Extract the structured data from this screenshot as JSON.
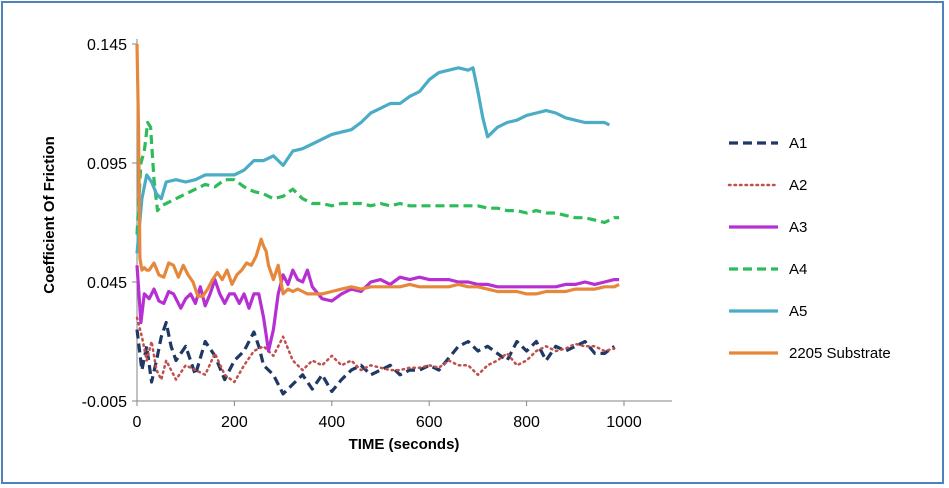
{
  "chart_data": {
    "type": "line",
    "title": "",
    "xlabel": "TIME (seconds)",
    "ylabel": "Coefficient Of Friction",
    "xlim": [
      0,
      1000
    ],
    "ylim": [
      -0.005,
      0.145
    ],
    "xticks": [
      "0",
      "200",
      "400",
      "600",
      "800",
      "1000"
    ],
    "yticks": [
      "-0.005",
      "0.045",
      "0.095",
      "0.145"
    ],
    "grid": false,
    "legend_position": "right",
    "series": [
      {
        "name": "A1",
        "color": "#1f3864",
        "dash": "dashed",
        "x": [
          0,
          10,
          20,
          30,
          40,
          50,
          60,
          70,
          80,
          100,
          120,
          140,
          160,
          180,
          200,
          220,
          240,
          250,
          260,
          280,
          300,
          320,
          340,
          360,
          380,
          400,
          420,
          440,
          460,
          480,
          500,
          520,
          540,
          560,
          580,
          600,
          620,
          640,
          660,
          680,
          700,
          720,
          740,
          760,
          780,
          800,
          820,
          840,
          860,
          880,
          900,
          920,
          940,
          960,
          980
        ],
        "values": [
          0.025,
          0.008,
          0.018,
          0.003,
          0.012,
          0.022,
          0.028,
          0.018,
          0.012,
          0.018,
          0.006,
          0.02,
          0.014,
          0.004,
          0.012,
          0.016,
          0.024,
          0.018,
          0.01,
          0.006,
          -0.002,
          0.002,
          0.006,
          0.0,
          0.006,
          -0.001,
          0.004,
          0.008,
          0.01,
          0.006,
          0.008,
          0.01,
          0.006,
          0.008,
          0.008,
          0.01,
          0.008,
          0.013,
          0.018,
          0.02,
          0.016,
          0.018,
          0.015,
          0.012,
          0.02,
          0.016,
          0.02,
          0.012,
          0.018,
          0.016,
          0.018,
          0.02,
          0.015,
          0.015,
          0.018
        ]
      },
      {
        "name": "A2",
        "color": "#c0504d",
        "dash": "dotted",
        "x": [
          0,
          10,
          20,
          30,
          40,
          50,
          60,
          80,
          100,
          120,
          140,
          160,
          180,
          200,
          220,
          240,
          260,
          280,
          300,
          320,
          340,
          360,
          380,
          400,
          420,
          440,
          460,
          480,
          500,
          520,
          540,
          560,
          580,
          600,
          620,
          640,
          660,
          680,
          700,
          720,
          740,
          760,
          780,
          800,
          820,
          840,
          860,
          880,
          900,
          920,
          940,
          960,
          980
        ],
        "values": [
          0.03,
          0.022,
          0.012,
          0.02,
          0.008,
          0.004,
          0.012,
          0.004,
          0.01,
          0.008,
          0.006,
          0.015,
          0.006,
          0.003,
          0.01,
          0.016,
          0.018,
          0.014,
          0.022,
          0.012,
          0.008,
          0.012,
          0.01,
          0.014,
          0.01,
          0.012,
          0.008,
          0.01,
          0.009,
          0.008,
          0.008,
          0.009,
          0.009,
          0.01,
          0.009,
          0.012,
          0.01,
          0.01,
          0.006,
          0.01,
          0.012,
          0.015,
          0.01,
          0.012,
          0.016,
          0.018,
          0.016,
          0.017,
          0.019,
          0.018,
          0.018,
          0.016,
          0.017
        ]
      },
      {
        "name": "A3",
        "color": "#b62fd3",
        "dash": "solid",
        "x": [
          0,
          8,
          15,
          25,
          35,
          45,
          55,
          65,
          75,
          90,
          100,
          110,
          120,
          130,
          140,
          150,
          160,
          170,
          180,
          190,
          200,
          210,
          220,
          230,
          240,
          250,
          260,
          270,
          280,
          290,
          300,
          310,
          320,
          330,
          340,
          350,
          360,
          380,
          400,
          420,
          440,
          460,
          480,
          500,
          520,
          540,
          560,
          580,
          600,
          620,
          640,
          660,
          680,
          700,
          720,
          740,
          760,
          780,
          800,
          820,
          840,
          860,
          880,
          900,
          920,
          940,
          960,
          980,
          990
        ],
        "values": [
          0.052,
          0.028,
          0.04,
          0.038,
          0.042,
          0.037,
          0.036,
          0.041,
          0.04,
          0.034,
          0.038,
          0.04,
          0.036,
          0.043,
          0.035,
          0.04,
          0.046,
          0.04,
          0.036,
          0.04,
          0.04,
          0.036,
          0.04,
          0.034,
          0.04,
          0.04,
          0.03,
          0.016,
          0.025,
          0.04,
          0.048,
          0.044,
          0.05,
          0.046,
          0.045,
          0.05,
          0.043,
          0.038,
          0.037,
          0.04,
          0.042,
          0.041,
          0.045,
          0.046,
          0.044,
          0.047,
          0.046,
          0.047,
          0.046,
          0.046,
          0.046,
          0.045,
          0.045,
          0.044,
          0.044,
          0.043,
          0.043,
          0.043,
          0.043,
          0.043,
          0.043,
          0.043,
          0.044,
          0.044,
          0.045,
          0.044,
          0.045,
          0.046,
          0.046
        ]
      },
      {
        "name": "A4",
        "color": "#2ebc5a",
        "dash": "dashed",
        "x": [
          0,
          8,
          15,
          22,
          28,
          35,
          42,
          50,
          60,
          70,
          80,
          100,
          120,
          140,
          160,
          180,
          200,
          220,
          240,
          260,
          280,
          300,
          320,
          340,
          360,
          380,
          400,
          420,
          440,
          460,
          480,
          500,
          520,
          540,
          560,
          580,
          600,
          620,
          640,
          660,
          680,
          700,
          720,
          740,
          760,
          780,
          800,
          820,
          840,
          860,
          880,
          900,
          920,
          940,
          960,
          980,
          990
        ],
        "values": [
          0.065,
          0.095,
          0.1,
          0.112,
          0.11,
          0.088,
          0.075,
          0.077,
          0.078,
          0.079,
          0.08,
          0.082,
          0.084,
          0.086,
          0.085,
          0.088,
          0.088,
          0.085,
          0.083,
          0.082,
          0.08,
          0.081,
          0.084,
          0.08,
          0.078,
          0.078,
          0.077,
          0.078,
          0.078,
          0.078,
          0.077,
          0.078,
          0.077,
          0.078,
          0.077,
          0.077,
          0.077,
          0.077,
          0.077,
          0.077,
          0.077,
          0.077,
          0.076,
          0.076,
          0.075,
          0.075,
          0.074,
          0.075,
          0.074,
          0.074,
          0.073,
          0.072,
          0.072,
          0.071,
          0.07,
          0.072,
          0.072
        ]
      },
      {
        "name": "A5",
        "color": "#4bacc6",
        "dash": "solid",
        "x": [
          0,
          10,
          20,
          30,
          40,
          50,
          60,
          80,
          100,
          120,
          140,
          160,
          180,
          200,
          220,
          240,
          260,
          280,
          300,
          320,
          340,
          360,
          380,
          400,
          420,
          440,
          460,
          480,
          500,
          520,
          540,
          560,
          580,
          600,
          620,
          640,
          660,
          680,
          690,
          700,
          710,
          720,
          740,
          760,
          780,
          800,
          820,
          840,
          860,
          880,
          900,
          920,
          940,
          960,
          970
        ],
        "values": [
          0.057,
          0.08,
          0.09,
          0.087,
          0.082,
          0.08,
          0.087,
          0.088,
          0.087,
          0.088,
          0.09,
          0.09,
          0.09,
          0.09,
          0.092,
          0.096,
          0.096,
          0.098,
          0.094,
          0.1,
          0.101,
          0.103,
          0.105,
          0.107,
          0.108,
          0.109,
          0.112,
          0.116,
          0.118,
          0.12,
          0.12,
          0.123,
          0.125,
          0.13,
          0.133,
          0.134,
          0.135,
          0.134,
          0.135,
          0.125,
          0.114,
          0.106,
          0.11,
          0.112,
          0.113,
          0.115,
          0.116,
          0.117,
          0.116,
          0.114,
          0.113,
          0.112,
          0.112,
          0.112,
          0.111
        ]
      },
      {
        "name": "2205 Substrate",
        "color": "#e6883c",
        "dash": "solid",
        "x": [
          0,
          3,
          6,
          10,
          15,
          20,
          25,
          35,
          45,
          55,
          65,
          75,
          85,
          95,
          105,
          115,
          125,
          135,
          145,
          155,
          165,
          175,
          185,
          195,
          205,
          215,
          225,
          235,
          245,
          255,
          260,
          265,
          270,
          280,
          290,
          300,
          310,
          320,
          330,
          340,
          350,
          360,
          380,
          400,
          420,
          440,
          460,
          480,
          500,
          520,
          540,
          560,
          580,
          600,
          620,
          640,
          660,
          680,
          700,
          720,
          740,
          760,
          780,
          800,
          820,
          840,
          860,
          880,
          900,
          920,
          940,
          960,
          980,
          990
        ],
        "values": [
          0.145,
          0.11,
          0.055,
          0.05,
          0.051,
          0.05,
          0.05,
          0.053,
          0.048,
          0.047,
          0.053,
          0.052,
          0.047,
          0.052,
          0.048,
          0.045,
          0.039,
          0.039,
          0.042,
          0.046,
          0.049,
          0.046,
          0.05,
          0.044,
          0.048,
          0.05,
          0.053,
          0.052,
          0.056,
          0.063,
          0.06,
          0.058,
          0.052,
          0.046,
          0.052,
          0.04,
          0.042,
          0.041,
          0.042,
          0.041,
          0.04,
          0.04,
          0.04,
          0.041,
          0.042,
          0.043,
          0.042,
          0.043,
          0.043,
          0.043,
          0.043,
          0.044,
          0.043,
          0.043,
          0.043,
          0.043,
          0.044,
          0.043,
          0.043,
          0.042,
          0.041,
          0.041,
          0.041,
          0.04,
          0.04,
          0.041,
          0.041,
          0.041,
          0.042,
          0.042,
          0.042,
          0.043,
          0.043,
          0.044
        ]
      }
    ]
  }
}
